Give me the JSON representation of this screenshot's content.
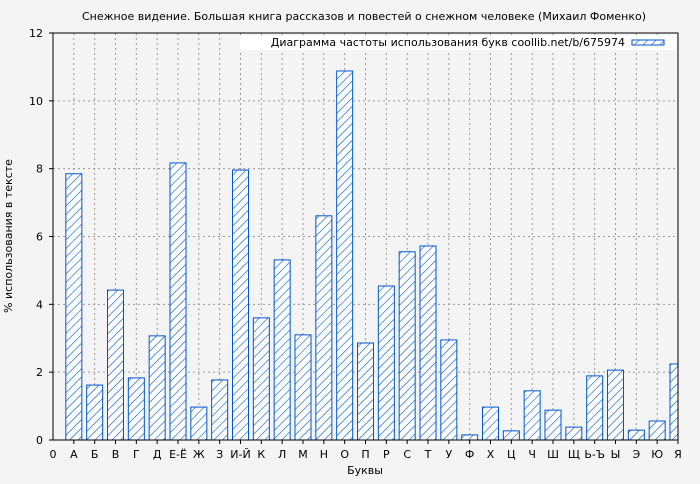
{
  "chart_data": {
    "type": "bar",
    "title": "Снежное видение. Большая книга рассказов и повестей о снежном человеке (Михаил Фоменко)",
    "xlabel": "Буквы",
    "ylabel": "% использования в тексте",
    "ylim": [
      0,
      12
    ],
    "yticks": [
      0,
      2,
      4,
      6,
      8,
      10,
      12
    ],
    "x_origin_label": "0",
    "grid": true,
    "legend_placement": "top-right",
    "bar_color": "#0055cc",
    "bar_fill": "hatched",
    "series": [
      {
        "name": "Диаграмма частоты использования букв coollib.net/b/675974",
        "values": [
          7.85,
          1.62,
          4.42,
          1.83,
          3.07,
          8.17,
          0.97,
          1.77,
          7.96,
          3.6,
          5.31,
          3.1,
          6.61,
          10.88,
          2.86,
          4.54,
          5.55,
          5.72,
          2.95,
          0.15,
          0.97,
          0.27,
          1.45,
          0.88,
          0.38,
          1.89,
          2.06,
          0.29,
          0.56,
          2.24
        ]
      }
    ],
    "categories": [
      "А",
      "Б",
      "В",
      "Г",
      "Д",
      "Е-Ё",
      "Ж",
      "З",
      "И-Й",
      "К",
      "Л",
      "М",
      "Н",
      "О",
      "П",
      "Р",
      "С",
      "Т",
      "У",
      "Ф",
      "Х",
      "Ц",
      "Ч",
      "Ш",
      "Щ",
      "Ь-Ъ",
      "Ы",
      "Э",
      "Ю",
      "Я"
    ]
  }
}
